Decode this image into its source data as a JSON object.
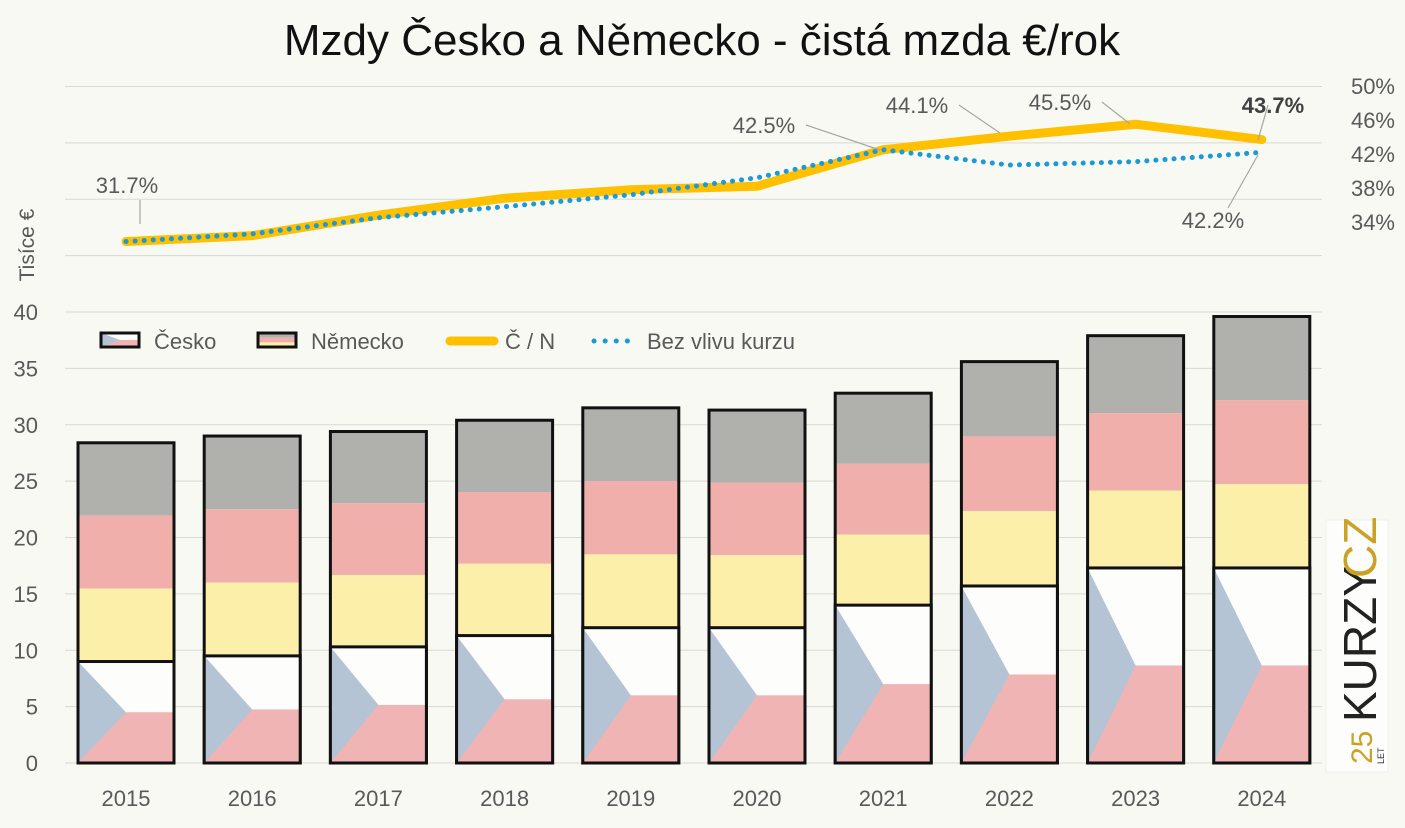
{
  "chart_data": {
    "type": "bar",
    "title": "Mzdy Česko a Německo - čistá mzda €/rok",
    "ylabel": "Tisíce €",
    "ylim": [
      0,
      40
    ],
    "yticks": [
      0,
      5,
      10,
      15,
      20,
      25,
      30,
      35,
      40
    ],
    "y2ticks": [
      "50%",
      "46%",
      "42%",
      "38%",
      "34%"
    ],
    "y2lim": [
      34,
      50
    ],
    "grid": true,
    "legend_placement": "top-left",
    "categories": [
      "2015",
      "2016",
      "2017",
      "2018",
      "2019",
      "2020",
      "2021",
      "2022",
      "2023",
      "2024"
    ],
    "series": [
      {
        "name": "Česko",
        "type": "bar",
        "values": [
          9.0,
          9.5,
          10.3,
          11.3,
          12.0,
          12.0,
          14.0,
          15.7,
          17.3,
          17.3
        ]
      },
      {
        "name": "Německo",
        "type": "bar",
        "values": [
          28.4,
          29.0,
          29.4,
          30.4,
          31.5,
          31.3,
          32.8,
          35.6,
          37.9,
          39.6
        ]
      },
      {
        "name": "Č / N",
        "type": "line",
        "axis": "right",
        "color": "#ffc000",
        "values": [
          31.7,
          32.4,
          34.8,
          36.8,
          37.8,
          38.2,
          42.5,
          44.1,
          45.5,
          43.7
        ]
      },
      {
        "name": "Bez vlivu kurzu",
        "type": "line",
        "style": "dotted",
        "axis": "right",
        "color": "#1a9ad6",
        "values": [
          31.7,
          32.6,
          34.5,
          35.8,
          37.2,
          39.2,
          42.5,
          40.7,
          41.1,
          42.2
        ]
      }
    ],
    "annotations": [
      {
        "series": "Č / N",
        "category": "2015",
        "text": "31.7%"
      },
      {
        "series": "Č / N",
        "category": "2021",
        "text": "42.5%"
      },
      {
        "series": "Č / N",
        "category": "2022",
        "text": "44.1%"
      },
      {
        "series": "Č / N",
        "category": "2023",
        "text": "45.5%"
      },
      {
        "series": "Č / N",
        "category": "2024",
        "text": "43.7%",
        "bold": true
      },
      {
        "series": "Bez vlivu kurzu",
        "category": "2024",
        "text": "42.2%"
      }
    ],
    "colors": {
      "cz_blue": "#b5c4d4",
      "cz_red": "#f0b4b4",
      "cz_white": "#fdfdfb",
      "de_black": "#b0b0ac",
      "de_red": "#f1afac",
      "de_gold": "#fbefaa"
    }
  },
  "logo": {
    "text": "25 LET KURZY CZ"
  }
}
